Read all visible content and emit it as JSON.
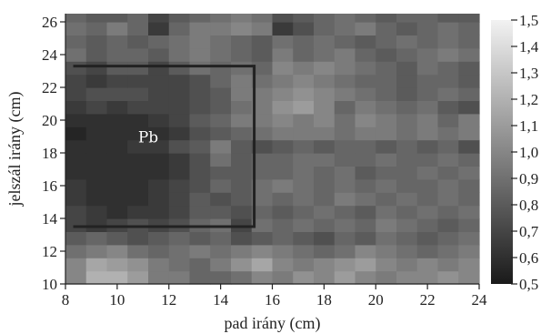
{
  "chart_data": {
    "type": "heatmap",
    "xlabel": "pad irány (cm)",
    "ylabel": "jelszál irány (cm)",
    "xlim": [
      8,
      24
    ],
    "ylim": [
      10,
      26.5
    ],
    "xticks": [
      "8",
      "10",
      "12",
      "14",
      "16",
      "18",
      "20",
      "22",
      "24"
    ],
    "yticks": [
      "10",
      "12",
      "14",
      "16",
      "18",
      "20",
      "22",
      "24",
      "26"
    ],
    "colorbar": {
      "min": 0.5,
      "max": 1.5,
      "ticks": [
        "0,5",
        "0,6",
        "0,7",
        "0,8",
        "0,9",
        "1,0",
        "1,1",
        "1,2",
        "1,3",
        "1,4",
        "1,5"
      ],
      "colors": [
        "#1a1a1a",
        "#f2f2f2"
      ]
    },
    "grid": {
      "x_start": 8,
      "x_step": 0.8,
      "y_start": 10,
      "y_step": 0.8,
      "rows_bottom_to_top": [
        [
          1.0,
          1.2,
          1.2,
          1.1,
          0.95,
          0.95,
          0.85,
          0.85,
          0.9,
          1.0,
          0.95,
          1.05,
          1.0,
          1.1,
          1.0,
          0.95,
          1.0,
          1.0,
          1.05,
          1.0
        ],
        [
          1.0,
          1.15,
          1.1,
          1.05,
          0.95,
          0.9,
          0.85,
          0.95,
          1.05,
          1.15,
          1.0,
          0.95,
          1.0,
          1.05,
          1.1,
          1.0,
          0.95,
          1.0,
          0.95,
          1.0
        ],
        [
          0.9,
          0.95,
          1.0,
          0.9,
          0.85,
          0.9,
          0.95,
          0.9,
          0.95,
          1.0,
          0.95,
          0.9,
          0.85,
          0.9,
          1.0,
          0.95,
          0.9,
          0.85,
          0.9,
          0.95
        ],
        [
          0.8,
          0.85,
          0.8,
          0.75,
          0.8,
          0.85,
          0.8,
          0.85,
          0.75,
          0.8,
          0.85,
          0.8,
          0.75,
          0.85,
          0.8,
          0.9,
          0.85,
          0.8,
          0.85,
          0.9
        ],
        [
          0.7,
          0.65,
          0.7,
          0.75,
          0.7,
          0.75,
          0.85,
          0.9,
          0.7,
          0.9,
          0.85,
          0.9,
          0.85,
          0.9,
          0.85,
          0.95,
          0.9,
          0.85,
          0.8,
          0.85
        ],
        [
          0.7,
          0.65,
          0.6,
          0.65,
          0.65,
          0.7,
          0.8,
          0.8,
          0.75,
          0.85,
          0.8,
          0.85,
          0.9,
          0.85,
          0.8,
          0.9,
          0.85,
          0.9,
          0.85,
          0.9
        ],
        [
          0.65,
          0.6,
          0.6,
          0.6,
          0.65,
          0.7,
          0.8,
          0.75,
          0.8,
          0.9,
          0.85,
          0.9,
          0.85,
          0.95,
          0.9,
          0.85,
          0.9,
          0.85,
          0.9,
          0.85
        ],
        [
          0.65,
          0.6,
          0.6,
          0.6,
          0.65,
          0.7,
          0.75,
          0.85,
          0.8,
          0.9,
          0.95,
          0.9,
          0.85,
          0.9,
          0.85,
          0.9,
          0.85,
          0.85,
          0.9,
          0.85
        ],
        [
          0.6,
          0.6,
          0.6,
          0.6,
          0.6,
          0.65,
          0.75,
          0.8,
          0.8,
          0.85,
          0.85,
          0.9,
          0.85,
          0.9,
          0.8,
          0.85,
          0.85,
          0.9,
          0.85,
          0.9
        ],
        [
          0.6,
          0.6,
          0.6,
          0.6,
          0.6,
          0.65,
          0.75,
          0.9,
          0.8,
          0.85,
          0.85,
          0.9,
          0.9,
          0.85,
          0.85,
          0.9,
          0.85,
          0.85,
          0.9,
          0.85
        ],
        [
          0.6,
          0.6,
          0.6,
          0.65,
          0.65,
          0.75,
          0.8,
          0.95,
          0.8,
          0.75,
          0.8,
          0.85,
          0.8,
          0.85,
          0.85,
          0.8,
          0.85,
          0.8,
          0.85,
          0.75
        ],
        [
          0.55,
          0.6,
          0.6,
          0.6,
          0.6,
          0.65,
          0.75,
          0.8,
          0.85,
          0.9,
          0.95,
          0.95,
          0.95,
          0.9,
          0.95,
          0.95,
          0.9,
          0.95,
          0.9,
          0.95
        ],
        [
          0.6,
          0.6,
          0.6,
          0.6,
          0.65,
          0.7,
          0.8,
          0.85,
          0.95,
          0.95,
          1.0,
          0.95,
          1.0,
          0.9,
          1.0,
          0.95,
          0.9,
          0.95,
          0.85,
          0.95
        ],
        [
          0.65,
          0.7,
          0.65,
          0.7,
          0.7,
          0.7,
          0.75,
          0.8,
          0.9,
          0.95,
          1.05,
          1.1,
          1.0,
          0.85,
          0.95,
          0.9,
          0.85,
          0.9,
          0.8,
          0.75
        ],
        [
          0.7,
          0.75,
          0.75,
          0.75,
          0.7,
          0.7,
          0.75,
          0.8,
          0.95,
          0.95,
          1.0,
          1.05,
          1.0,
          0.95,
          0.9,
          0.85,
          0.8,
          0.85,
          0.9,
          0.85
        ],
        [
          0.7,
          0.65,
          0.7,
          0.7,
          0.7,
          0.7,
          0.75,
          0.85,
          0.95,
          0.9,
          0.95,
          1.0,
          0.95,
          0.9,
          0.85,
          0.85,
          0.8,
          0.85,
          0.85,
          0.8
        ],
        [
          0.75,
          0.7,
          0.8,
          0.8,
          0.7,
          0.8,
          0.9,
          0.85,
          0.9,
          0.85,
          1.0,
          0.95,
          1.0,
          0.95,
          0.9,
          0.85,
          0.8,
          0.9,
          0.85,
          0.8
        ],
        [
          0.9,
          0.8,
          0.85,
          0.85,
          0.8,
          0.9,
          0.95,
          0.9,
          0.85,
          0.8,
          0.95,
          0.85,
          0.9,
          0.95,
          0.85,
          0.8,
          0.85,
          0.9,
          0.95,
          0.9
        ],
        [
          0.85,
          0.8,
          0.85,
          0.8,
          0.85,
          0.9,
          0.95,
          0.9,
          0.85,
          0.8,
          0.9,
          0.85,
          0.9,
          0.85,
          0.8,
          0.85,
          0.9,
          0.85,
          0.9,
          0.85
        ],
        [
          0.9,
          0.85,
          0.95,
          0.85,
          0.65,
          0.85,
          0.95,
          0.95,
          1.0,
          0.95,
          0.65,
          0.75,
          0.85,
          0.9,
          0.95,
          0.85,
          0.8,
          0.85,
          0.9,
          0.85
        ],
        [
          0.85,
          0.8,
          0.8,
          0.85,
          0.7,
          0.8,
          0.85,
          0.9,
          0.95,
          0.9,
          0.75,
          0.8,
          0.85,
          0.9,
          0.85,
          0.8,
          0.85,
          0.85,
          0.8,
          0.8
        ]
      ]
    },
    "region": {
      "label": "Pb",
      "label_x": 11.2,
      "label_y": 18.9,
      "x_min": 8.3,
      "x_max": 15.3,
      "y_min": 13.5,
      "y_max": 23.3
    }
  }
}
